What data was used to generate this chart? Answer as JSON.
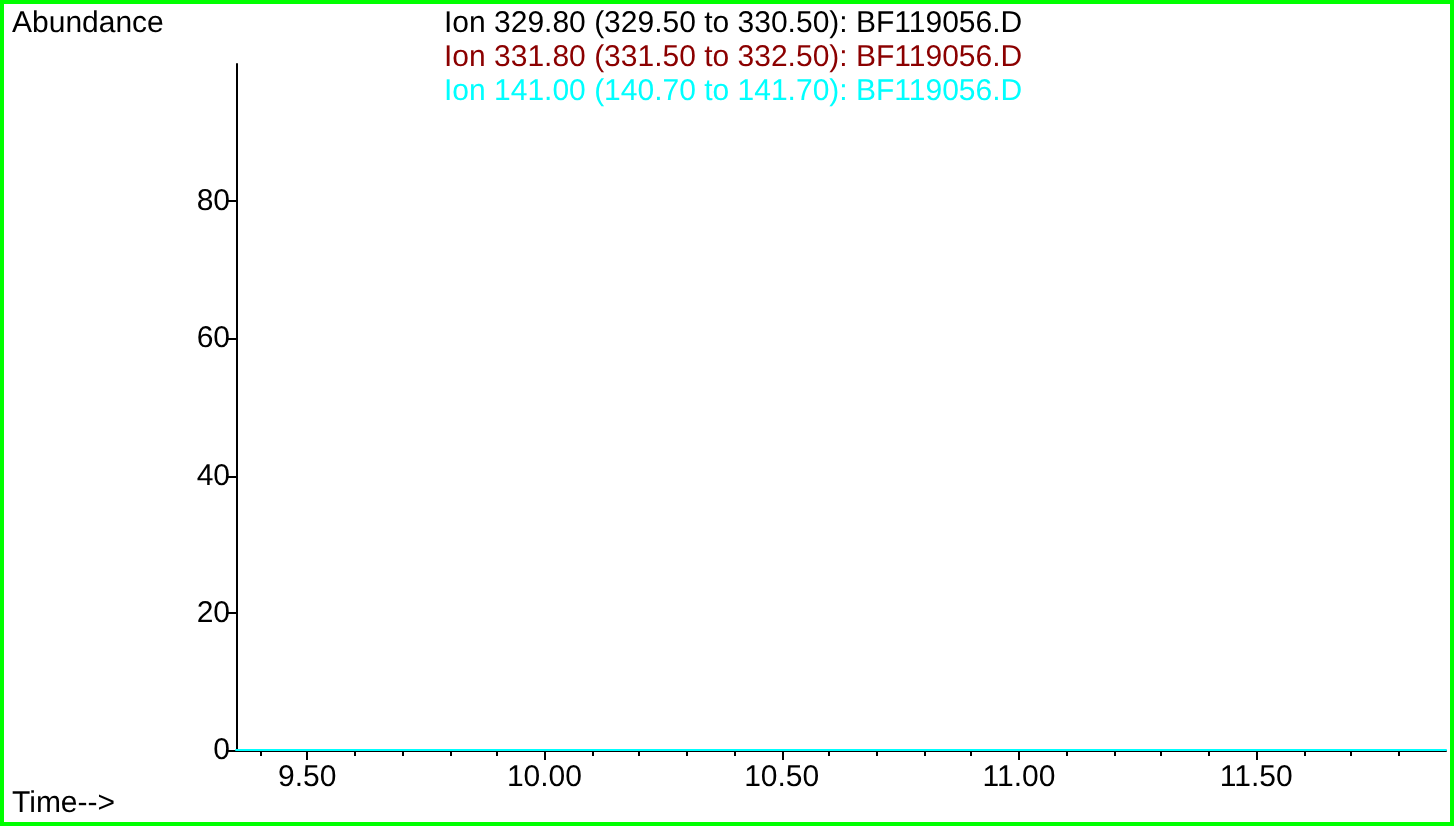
{
  "chart_data": {
    "type": "line",
    "xlabel": "Time-->",
    "ylabel": "Abundance",
    "xlim": [
      9.35,
      11.9
    ],
    "xticks": [
      {
        "value": 9.5,
        "label": "9.50"
      },
      {
        "value": 10,
        "label": "10.00"
      },
      {
        "value": 10.5,
        "label": "10.50"
      },
      {
        "value": 11,
        "label": "11.00"
      },
      {
        "value": 11.5,
        "label": "11.50"
      }
    ],
    "ylim": [
      0,
      100
    ],
    "yticks": [
      0,
      20,
      40,
      60,
      80
    ],
    "x": [
      9.35,
      11.9
    ],
    "series": [
      {
        "name": "Ion 329.80 (329.50 to 330.50): BF119056.D",
        "color": "#000000",
        "values": [
          null,
          null
        ]
      },
      {
        "name": "Ion 331.80 (331.50 to 332.50): BF119056.D",
        "color": "#8b0000",
        "values": [
          null,
          null
        ]
      },
      {
        "name": "Ion 141.00 (140.70 to 141.70): BF119056.D",
        "color": "#00ffff",
        "values": [
          0,
          0
        ]
      }
    ],
    "legend": "top",
    "grid": false,
    "marker": "none",
    "line_style": "solid"
  }
}
